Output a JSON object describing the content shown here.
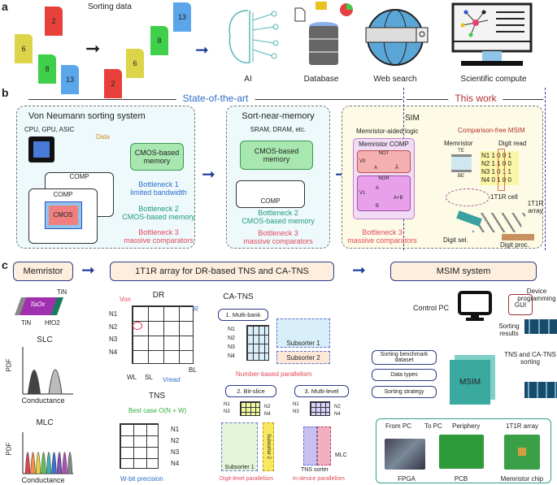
{
  "panel_a": {
    "label": "a",
    "title": "Sorting data",
    "unsorted": [
      {
        "value": "6",
        "color": "#ddd44a"
      },
      {
        "value": "2",
        "color": "#e8413c"
      },
      {
        "value": "8",
        "color": "#3fcf4a"
      },
      {
        "value": "13",
        "color": "#5aa6ea"
      }
    ],
    "sorted": [
      {
        "value": "2",
        "color": "#e8413c"
      },
      {
        "value": "6",
        "color": "#ddd44a"
      },
      {
        "value": "8",
        "color": "#3fcf4a"
      },
      {
        "value": "13",
        "color": "#5aa6ea"
      }
    ],
    "applications": [
      {
        "label": "AI",
        "icon": "brain-circuit-icon"
      },
      {
        "label": "Database",
        "icon": "database-icon"
      },
      {
        "label": "Web search",
        "icon": "globe-search-icon"
      },
      {
        "label": "Scientific compute",
        "icon": "monitor-network-icon"
      }
    ]
  },
  "panel_b": {
    "label": "b",
    "state_of_the_art": "State-of-the-art",
    "this_work": "This work",
    "von_neumann": {
      "title": "Von Neumann sorting system",
      "subtitle": "CPU, GPU, ASIC",
      "data_label": "Data",
      "memory": "CMOS-based memory",
      "comp": "COMP",
      "cmos": "CMOS",
      "bottleneck1": [
        "Bottleneck 1",
        "limited bandwidth"
      ],
      "bottleneck2": [
        "Bottleneck 2",
        "CMOS-based memory"
      ],
      "bottleneck3": [
        "Bottleneck 3",
        "massive comparators"
      ]
    },
    "near_memory": {
      "title": "Sort-near-memory",
      "subtitle": "SRAM, DRAM, etc.",
      "memory": "CMOS-based memory",
      "comp": "COMP",
      "bottleneck2": [
        "Bottleneck 2",
        "CMOS-based memory"
      ],
      "bottleneck3": [
        "Bottleneck 3",
        "massive comparators"
      ]
    },
    "sim": {
      "title": "SIM",
      "logic_title": "Memristor-aided logic",
      "memristor_comp": "Memristor COMP",
      "not_label": "NOT",
      "nor_label": "NOR",
      "v0": "V0",
      "v1": "V1",
      "a": "A",
      "a_bar": "Ā",
      "b": "B",
      "a_plus_b": "A+B",
      "bottleneck3": [
        "Bottleneck 3",
        "massive comparators"
      ],
      "msim_title": "Comparison-free MSIM",
      "memristor": "Memristor",
      "te": "TE",
      "be": "BE",
      "digit_read": "Digit read",
      "digits": [
        [
          "N1",
          "1",
          "0",
          "0",
          "1"
        ],
        [
          "N2",
          "1",
          "1",
          "0",
          "0"
        ],
        [
          "N3",
          "1",
          "0",
          "1",
          "1"
        ],
        [
          "N4",
          "0",
          "1",
          "0",
          "0"
        ]
      ],
      "cell": "1T1R cell",
      "array": "1T1R array",
      "digit_sel": "Digit sel.",
      "digit_proc": "Digit proc."
    }
  },
  "panel_c": {
    "label": "c",
    "flow": [
      "Memristor",
      "1T1R array for DR-based TNS and CA-TNS",
      "MSIM system"
    ],
    "memristor": {
      "tin_top": "TiN",
      "taox": "TaOx",
      "tin_bottom": "TiN",
      "hfo2": "HfO2",
      "slc": "SLC",
      "mlc": "MLC",
      "pdf": "PDF",
      "conductance": "Conductance"
    },
    "dr": {
      "title": "DR",
      "von": "Von",
      "idr": "IDR",
      "rows": [
        "N1",
        "N2",
        "N3",
        "N4"
      ],
      "wl": "WL",
      "sl": "SL",
      "vread": "Vread",
      "bl": "BL"
    },
    "tns": {
      "title": "TNS",
      "best_case": "Best case O(N + W)",
      "rows": [
        "N1",
        "N2",
        "N3",
        "N4"
      ],
      "precision": "W-bit precision"
    },
    "ca_tns": {
      "title": "CA-TNS",
      "multi_bank": "1. Multi-bank",
      "bit_slice": "2. Bit-slice",
      "multi_level": "3. Multi-level",
      "rows": [
        "N1",
        "N2",
        "N3",
        "N4"
      ],
      "subsorter1": "Subsorter 1",
      "subsorter2": "Subsorter 2",
      "number_parallel": "Number-based parallelism",
      "digit_parallel": "Digit-level parallelism",
      "device_parallel": "In-device parallelism",
      "tns_sorter": "TNS sorter",
      "mlc": "MLC"
    },
    "msim": {
      "control_pc": "Control PC",
      "gui": "GUI",
      "sorting_results": [
        "Sorting",
        "results"
      ],
      "device_programming": [
        "Device",
        "programming"
      ],
      "tns_sorting": [
        "TNS and CA-TNS",
        "sorting"
      ],
      "inputs": [
        "Sorting benchmark dataset",
        "Data types",
        "Sorting strategy"
      ],
      "cube": "MSIM",
      "from_pc": "From PC",
      "to_pc": "To PC",
      "periphery": "Periphery",
      "array": "1T1R array",
      "fpga": "FPGA",
      "pcb": "PCB",
      "chip": "Memristor chip"
    }
  }
}
